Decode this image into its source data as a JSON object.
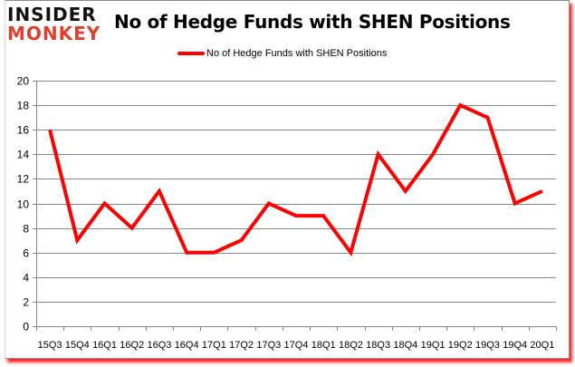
{
  "branding": {
    "logo_line1": "INSIDER",
    "logo_line2": "MONKEY"
  },
  "colors": {
    "series": "#ff0000",
    "grid": "#868686",
    "logo_red": "#e0402b",
    "shadow": "#ff0000"
  },
  "chart_data": {
    "type": "line",
    "title": "No of Hedge Funds with SHEN Positions",
    "xlabel": "",
    "ylabel": "",
    "ylim": [
      0,
      20
    ],
    "yticks": [
      0,
      2,
      4,
      6,
      8,
      10,
      12,
      14,
      16,
      18,
      20
    ],
    "grid": true,
    "legend_position": "top",
    "categories": [
      "15Q3",
      "15Q4",
      "16Q1",
      "16Q2",
      "16Q3",
      "16Q4",
      "17Q1",
      "17Q2",
      "17Q3",
      "17Q4",
      "18Q1",
      "18Q2",
      "18Q3",
      "18Q4",
      "19Q1",
      "19Q2",
      "19Q3",
      "19Q4",
      "20Q1"
    ],
    "series": [
      {
        "name": "No of Hedge Funds with SHEN Positions",
        "values": [
          16,
          7,
          10,
          8,
          11,
          6,
          6,
          7,
          10,
          9,
          9,
          6,
          14,
          11,
          14,
          18,
          17,
          10,
          11
        ]
      }
    ]
  }
}
